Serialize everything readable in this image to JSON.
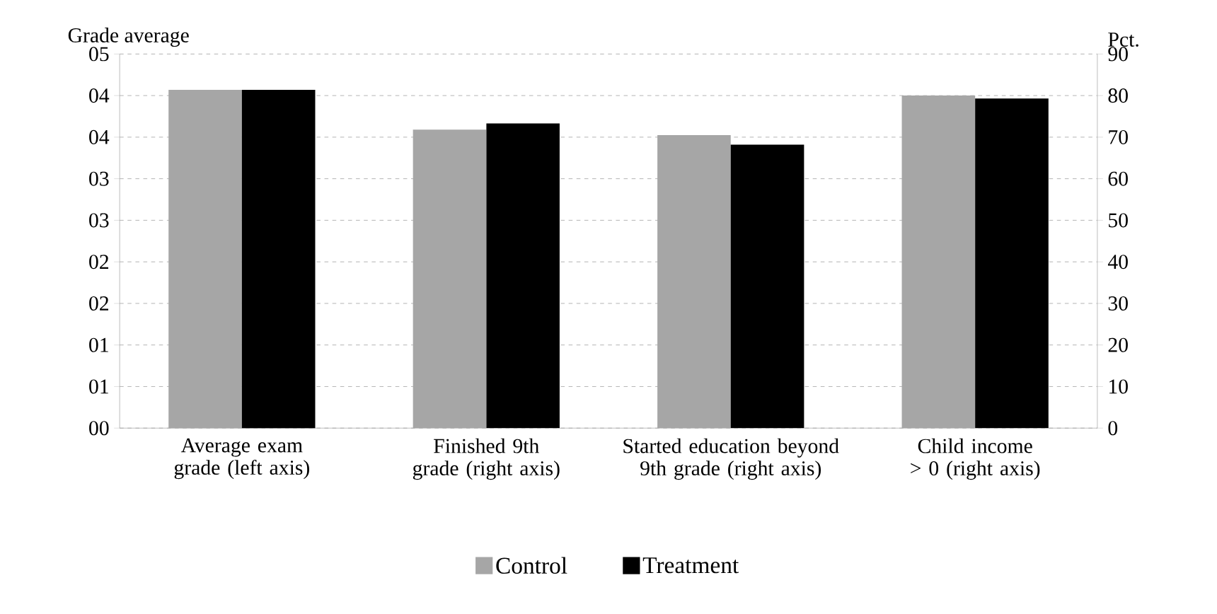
{
  "chart_data": {
    "type": "bar",
    "categories": [
      "Average exam grade (left axis)",
      "Finished 9th grade (right axis)",
      "Started education beyond 9th grade (right axis)",
      "Child income > 0 (right axis)"
    ],
    "ylabel": "Grade average",
    "y2label": "Pct.",
    "series": [
      {
        "name": "Control",
        "color": "#a6a6a6",
        "values": [
          4.07,
          null,
          null,
          null
        ]
      },
      {
        "name": "Treatment",
        "color": "#000000",
        "values": [
          4.07,
          null,
          null,
          null
        ]
      },
      {
        "color": "#a6a6a6",
        "axis": "y2",
        "values": [
          null,
          71.8,
          70.5,
          80.0
        ]
      },
      {
        "color": "#000000",
        "axis": "y2",
        "values": [
          null,
          73.3,
          68.2,
          79.3
        ]
      }
    ],
    "ylim": [
      0,
      4.5
    ],
    "yticks": [
      {
        "value": 0,
        "label": "00"
      },
      {
        "value": 0.5,
        "label": "01"
      },
      {
        "value": 1,
        "label": "01"
      },
      {
        "value": 1.5,
        "label": "02"
      },
      {
        "value": 2,
        "label": "02"
      },
      {
        "value": 2.5,
        "label": "03"
      },
      {
        "value": 3,
        "label": "03"
      },
      {
        "value": 3.5,
        "label": "04"
      },
      {
        "value": 4,
        "label": "04"
      },
      {
        "value": 4.5,
        "label": "05"
      }
    ],
    "y2lim": [
      0,
      90
    ],
    "y2ticks": [
      0,
      10,
      20,
      30,
      40,
      50,
      60,
      70,
      80,
      90
    ],
    "grid": "y",
    "legend": "bottom"
  }
}
